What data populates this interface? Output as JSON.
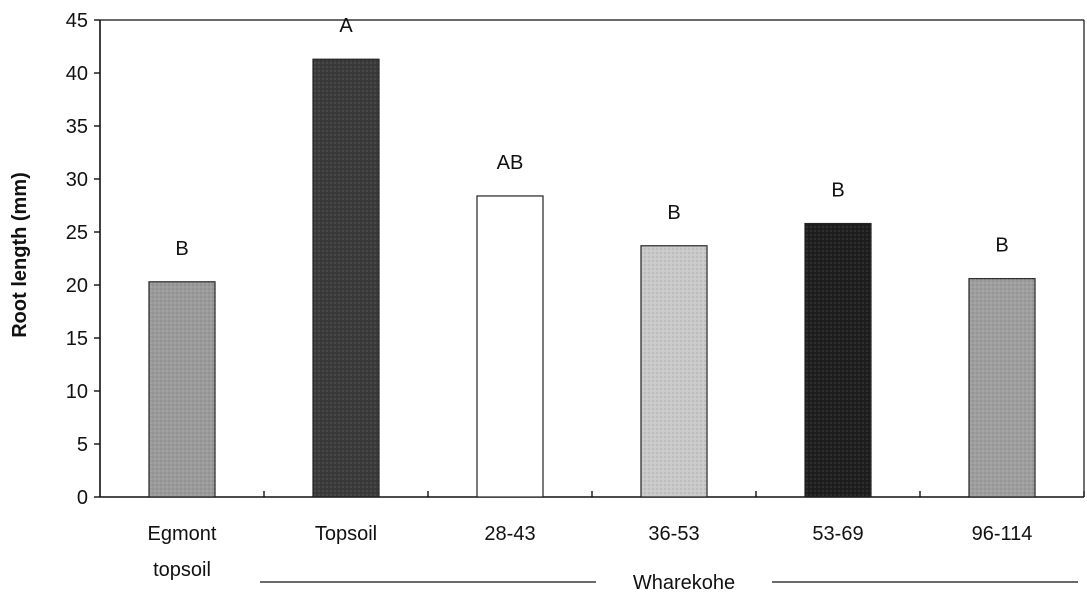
{
  "chart_data": {
    "type": "bar",
    "title": "",
    "ylabel": "Root length (mm)",
    "xlabel": "",
    "ylim": [
      0,
      45
    ],
    "yticks": [
      0,
      5,
      10,
      15,
      20,
      25,
      30,
      35,
      40,
      45
    ],
    "categories": [
      {
        "lines": [
          "Egmont",
          "topsoil"
        ]
      },
      {
        "lines": [
          "Topsoil"
        ]
      },
      {
        "lines": [
          "28-43"
        ]
      },
      {
        "lines": [
          "36-53"
        ]
      },
      {
        "lines": [
          "53-69"
        ]
      },
      {
        "lines": [
          "96-114"
        ]
      }
    ],
    "values": [
      20.3,
      41.3,
      28.4,
      23.7,
      25.8,
      20.6
    ],
    "significance_letters": [
      "B",
      "A",
      "AB",
      "B",
      "B",
      "B"
    ],
    "group_label": "Wharekohe",
    "grid": false,
    "legend": "none",
    "colors": {
      "bar_fills": [
        "#9a9a9a",
        "#3a3a3a",
        "#ffffff",
        "#c9c9c9",
        "#1e1e1e",
        "#9e9e9e"
      ],
      "bar_stroke": "#222222",
      "axis": "#111111"
    }
  }
}
